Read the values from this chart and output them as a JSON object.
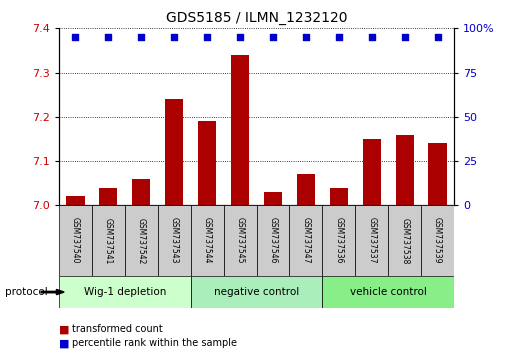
{
  "title": "GDS5185 / ILMN_1232120",
  "samples": [
    "GSM737540",
    "GSM737541",
    "GSM737542",
    "GSM737543",
    "GSM737544",
    "GSM737545",
    "GSM737546",
    "GSM737547",
    "GSM737536",
    "GSM737537",
    "GSM737538",
    "GSM737539"
  ],
  "bar_values": [
    7.02,
    7.04,
    7.06,
    7.24,
    7.19,
    7.34,
    7.03,
    7.07,
    7.04,
    7.15,
    7.16,
    7.14
  ],
  "percentile_values": [
    95,
    95,
    95,
    95,
    95,
    95,
    95,
    95,
    95,
    95,
    95,
    95
  ],
  "ylim_left": [
    7.0,
    7.4
  ],
  "ylim_right": [
    0,
    100
  ],
  "yticks_left": [
    7.0,
    7.1,
    7.2,
    7.3,
    7.4
  ],
  "yticks_right": [
    0,
    25,
    50,
    75,
    100
  ],
  "bar_color": "#aa0000",
  "dot_color": "#0000cc",
  "groups": [
    {
      "label": "Wig-1 depletion",
      "start": 0,
      "end": 4
    },
    {
      "label": "negative control",
      "start": 4,
      "end": 8
    },
    {
      "label": "vehicle control",
      "start": 8,
      "end": 12
    }
  ],
  "group_colors": [
    "#ccffcc",
    "#aaeebb",
    "#88ee88"
  ],
  "protocol_label": "protocol",
  "legend_bar_label": "transformed count",
  "legend_dot_label": "percentile rank within the sample",
  "background_color": "#ffffff",
  "tick_label_color_left": "#cc0000",
  "tick_label_color_right": "#0000cc",
  "sample_box_color": "#cccccc",
  "title_fontsize": 10
}
